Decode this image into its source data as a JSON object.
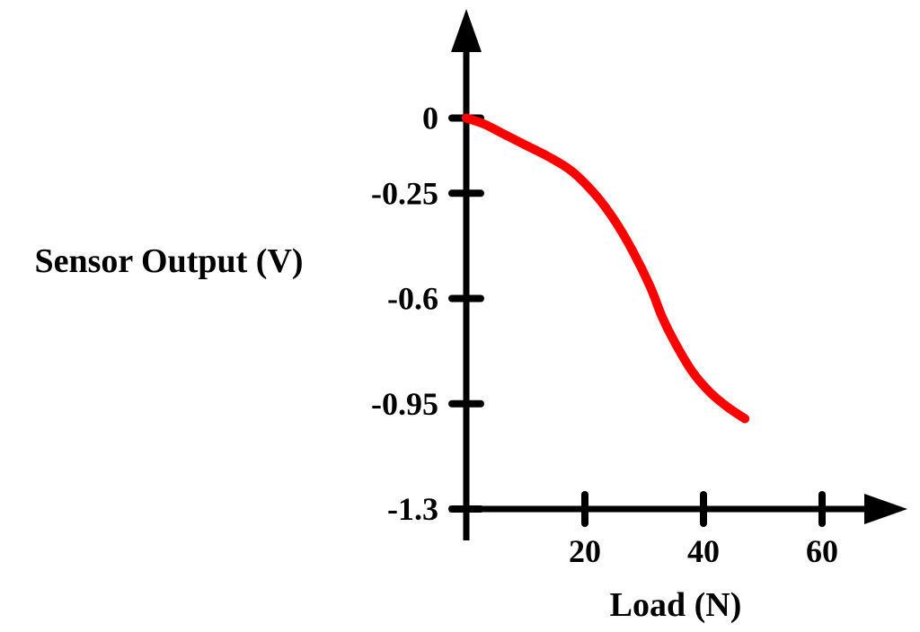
{
  "chart_data": {
    "type": "line",
    "title": "",
    "xlabel": "Load (N)",
    "ylabel": "Sensor Output (V)",
    "x_ticks": [
      20,
      40,
      60
    ],
    "y_ticks": [
      0,
      -0.25,
      -0.6,
      -0.95,
      -1.3
    ],
    "y_tick_labels": [
      "0",
      "-0.25",
      "-0.6",
      "-0.95",
      "-1.3"
    ],
    "x_tick_labels": [
      "20",
      "40",
      "60"
    ],
    "xlim": [
      0,
      72
    ],
    "ylim": [
      -1.3,
      0.15
    ],
    "grid": false,
    "legend": "none",
    "line_color": "#ff0000",
    "axis_color": "#000000",
    "series": [
      {
        "x": [
          0,
          3,
          6,
          10,
          14,
          18,
          22,
          25,
          28,
          31,
          33,
          35,
          38,
          41,
          44,
          47
        ],
        "y": [
          0,
          -0.02,
          -0.05,
          -0.09,
          -0.13,
          -0.18,
          -0.26,
          -0.34,
          -0.44,
          -0.56,
          -0.66,
          -0.74,
          -0.84,
          -0.91,
          -0.96,
          -1.0
        ]
      }
    ]
  }
}
